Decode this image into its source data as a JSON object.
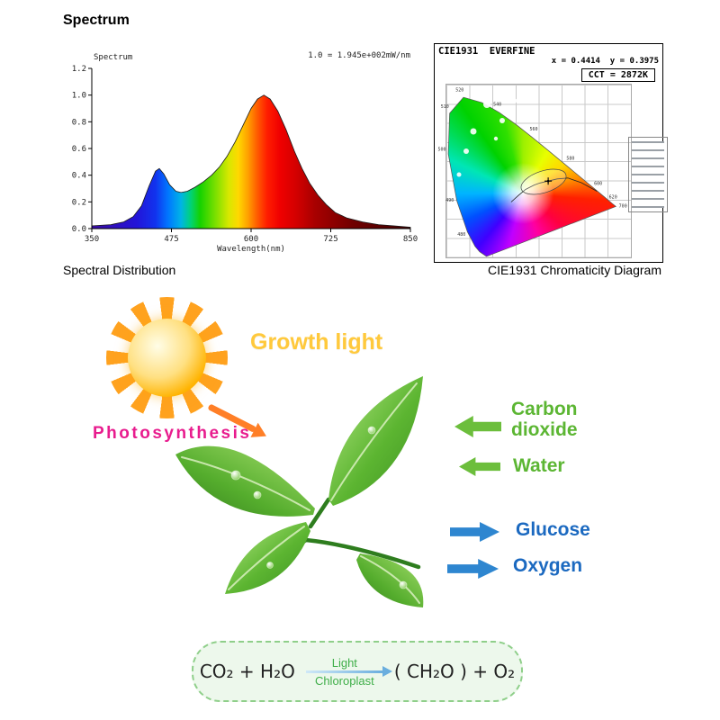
{
  "header": {
    "title": "Spectrum"
  },
  "spectral_panel": {
    "ylabel_small": "Spectrum",
    "note": "1.0 = 1.945e+002mW/nm",
    "xlabel": "Wavelength(nm)",
    "caption": "Spectral Distribution"
  },
  "cie_panel": {
    "title": "CIE1931  EVERFINE",
    "readout": "x = 0.4414  y = 0.3975",
    "cct": "CCT = 2872K",
    "caption": "CIE1931 Chromaticity Diagram"
  },
  "photosynthesis": {
    "growth_light_label": "Growth light",
    "title": "Photosynthesis",
    "inputs": [
      {
        "label": "Carbon dioxide"
      },
      {
        "label": "Water"
      }
    ],
    "outputs": [
      {
        "label": "Glucose"
      },
      {
        "label": "Oxygen"
      }
    ],
    "equation": {
      "reactants": "CO₂ + H₂O",
      "condition_top": "Light",
      "condition_bottom": "Chloroplast",
      "products": "( CH₂O ) + O₂"
    }
  },
  "colors": {
    "input_green": "#5cb633",
    "output_blue": "#1b69c0",
    "growth_light_yellow": "#ffc93c",
    "photosynthesis_magenta": "#e81c8e",
    "sun_orange": "#fb8c00",
    "equation_green": "#3fae49"
  },
  "chart_data": [
    {
      "type": "area",
      "title": "Spectral Distribution",
      "xlabel": "Wavelength(nm)",
      "ylabel": "Spectrum",
      "note": "1.0 = 1.945e+002mW/nm",
      "xlim": [
        350,
        850
      ],
      "ylim": [
        0,
        1.2
      ],
      "xticks": [
        350,
        475,
        600,
        725,
        850
      ],
      "yticks": [
        0,
        0.2,
        0.4,
        0.6,
        0.8,
        1.0,
        1.2
      ],
      "points": [
        [
          350,
          0.02
        ],
        [
          380,
          0.03
        ],
        [
          400,
          0.05
        ],
        [
          415,
          0.09
        ],
        [
          428,
          0.17
        ],
        [
          440,
          0.32
        ],
        [
          450,
          0.43
        ],
        [
          456,
          0.45
        ],
        [
          463,
          0.41
        ],
        [
          472,
          0.33
        ],
        [
          482,
          0.28
        ],
        [
          490,
          0.27
        ],
        [
          500,
          0.28
        ],
        [
          512,
          0.31
        ],
        [
          525,
          0.35
        ],
        [
          538,
          0.4
        ],
        [
          550,
          0.46
        ],
        [
          562,
          0.54
        ],
        [
          575,
          0.65
        ],
        [
          588,
          0.78
        ],
        [
          600,
          0.9
        ],
        [
          610,
          0.97
        ],
        [
          620,
          1.0
        ],
        [
          630,
          0.97
        ],
        [
          642,
          0.88
        ],
        [
          655,
          0.74
        ],
        [
          668,
          0.58
        ],
        [
          680,
          0.45
        ],
        [
          692,
          0.34
        ],
        [
          705,
          0.25
        ],
        [
          718,
          0.18
        ],
        [
          732,
          0.12
        ],
        [
          750,
          0.08
        ],
        [
          775,
          0.05
        ],
        [
          800,
          0.03
        ],
        [
          825,
          0.02
        ],
        [
          850,
          0.01
        ]
      ]
    },
    {
      "type": "scatter",
      "title": "CIE1931 Chromaticity Diagram",
      "xlim": [
        0,
        0.8
      ],
      "ylim": [
        0,
        0.9
      ],
      "points": [
        [
          0.4414,
          0.3975
        ]
      ],
      "cct_k": 2872,
      "locus_labels": [
        {
          "nm": "480",
          "x": 0.0913,
          "y": 0.1327
        },
        {
          "nm": "490",
          "x": 0.0454,
          "y": 0.295
        },
        {
          "nm": "500",
          "x": 0.0082,
          "y": 0.5384
        },
        {
          "nm": "510",
          "x": 0.0139,
          "y": 0.7502
        },
        {
          "nm": "520",
          "x": 0.0743,
          "y": 0.8338
        },
        {
          "nm": "540",
          "x": 0.2296,
          "y": 0.7543
        },
        {
          "nm": "560",
          "x": 0.3731,
          "y": 0.6245
        },
        {
          "nm": "580",
          "x": 0.5125,
          "y": 0.4866
        },
        {
          "nm": "600",
          "x": 0.627,
          "y": 0.3725
        },
        {
          "nm": "620",
          "x": 0.6915,
          "y": 0.3083
        },
        {
          "nm": "700",
          "x": 0.7347,
          "y": 0.2653
        }
      ]
    }
  ]
}
